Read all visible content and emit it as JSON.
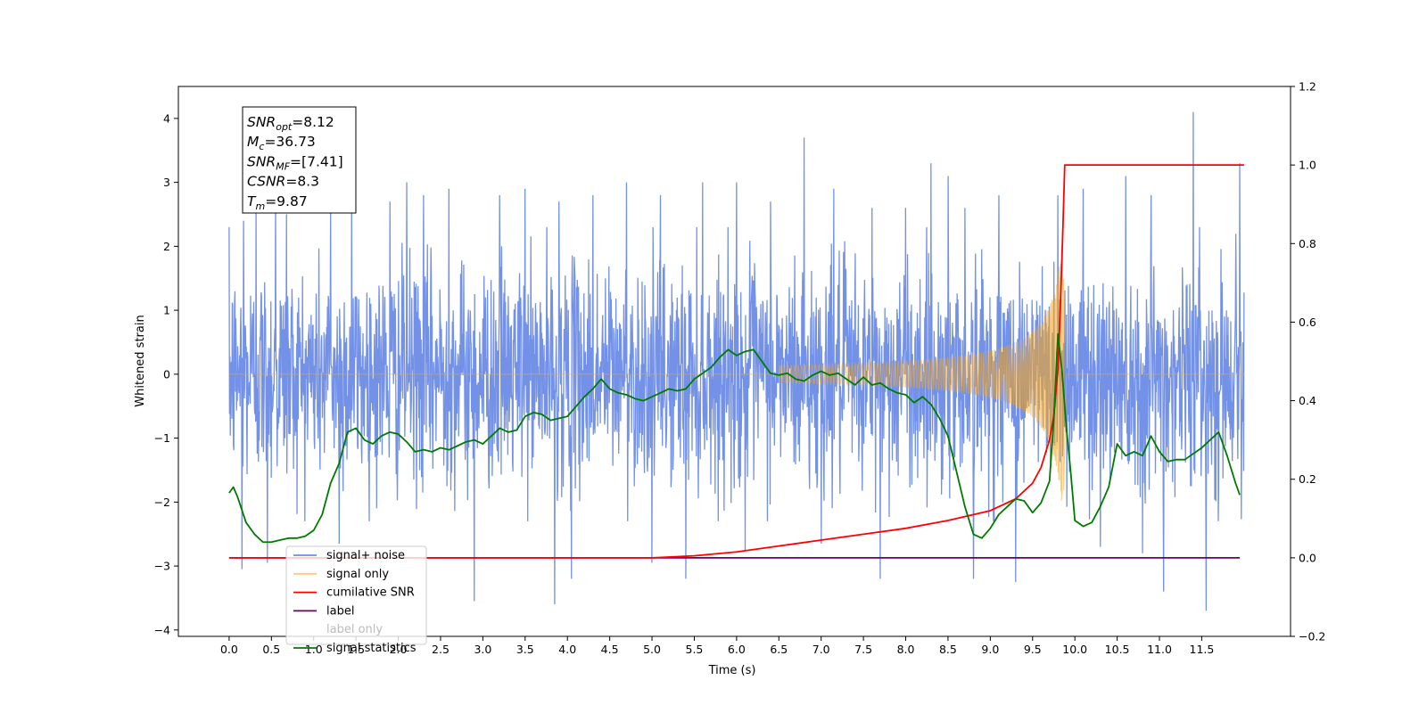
{
  "chart_data": {
    "type": "line",
    "xlabel": "Time (s)",
    "ylabel": "Whitened strain",
    "xlim": [
      -0.6,
      12.55
    ],
    "ylim": [
      -4.1,
      4.5
    ],
    "y2lim": [
      -0.2,
      1.2
    ],
    "x_ticks": [
      "0.0",
      "0.5",
      "1.0",
      "1.5",
      "2.0",
      "2.5",
      "3.0",
      "3.5",
      "4.0",
      "4.5",
      "5.0",
      "5.5",
      "6.0",
      "6.5",
      "7.0",
      "7.5",
      "8.0",
      "8.5",
      "9.0",
      "9.5",
      "10.0",
      "10.5",
      "11.0",
      "11.5"
    ],
    "y_ticks": [
      "−4",
      "−3",
      "−2",
      "−1",
      "0",
      "1",
      "2",
      "3",
      "4"
    ],
    "y2_ticks": [
      "−0.2",
      "0.0",
      "0.2",
      "0.4",
      "0.6",
      "0.8",
      "1.0",
      "1.2"
    ],
    "grid": false,
    "legend_position": "lower-left",
    "annotation": {
      "lines": [
        {
          "base": "SNR",
          "sub": "opt",
          "rest": "=8.12"
        },
        {
          "base": "M",
          "sub": "c",
          "rest": "=36.73"
        },
        {
          "base": "SNR",
          "sub": "MF",
          "rest": "=[7.41]"
        },
        {
          "base": "CSNR",
          "sub": "",
          "rest": "=8.3"
        },
        {
          "base": "T",
          "sub": "m",
          "rest": "=9.87"
        }
      ]
    },
    "series": [
      {
        "name": "signal+ noise",
        "color": "#6b8be6",
        "axis": "left",
        "description": "dense noise band approximately within [-1.8, 1.8] with spikes up to ~4.1 and down to ~-3.7",
        "t_range": [
          0.0,
          12.0
        ],
        "spikes": [
          [
            0.17,
            2.4
          ],
          [
            0.32,
            2.6
          ],
          [
            0.55,
            2.8
          ],
          [
            0.68,
            2.5
          ],
          [
            1.2,
            2.6
          ],
          [
            1.45,
            2.9
          ],
          [
            1.9,
            2.7
          ],
          [
            2.1,
            3.0
          ],
          [
            2.3,
            2.8
          ],
          [
            2.6,
            2.9
          ],
          [
            2.9,
            3.0
          ],
          [
            3.2,
            2.8
          ],
          [
            3.5,
            2.9
          ],
          [
            3.9,
            2.7
          ],
          [
            4.3,
            2.8
          ],
          [
            4.7,
            3.0
          ],
          [
            5.1,
            2.8
          ],
          [
            5.6,
            3.0
          ],
          [
            6.0,
            3.0
          ],
          [
            6.4,
            2.7
          ],
          [
            6.8,
            3.7
          ],
          [
            7.15,
            2.9
          ],
          [
            7.6,
            2.6
          ],
          [
            8.0,
            2.6
          ],
          [
            8.3,
            3.3
          ],
          [
            8.5,
            3.1
          ],
          [
            8.7,
            2.6
          ],
          [
            9.1,
            2.8
          ],
          [
            9.8,
            2.8
          ],
          [
            10.1,
            2.9
          ],
          [
            10.6,
            3.1
          ],
          [
            10.9,
            2.8
          ],
          [
            11.4,
            4.1
          ],
          [
            11.95,
            3.3
          ],
          [
            0.15,
            -3.05
          ],
          [
            0.45,
            -2.95
          ],
          [
            1.3,
            -2.65
          ],
          [
            2.9,
            -3.55
          ],
          [
            3.85,
            -3.6
          ],
          [
            4.05,
            -3.2
          ],
          [
            5.0,
            -2.95
          ],
          [
            5.4,
            -3.2
          ],
          [
            6.1,
            -2.75
          ],
          [
            7.0,
            -2.65
          ],
          [
            7.7,
            -3.2
          ],
          [
            8.8,
            -3.2
          ],
          [
            9.3,
            -3.25
          ],
          [
            10.3,
            -2.7
          ],
          [
            10.8,
            -2.8
          ],
          [
            11.05,
            -3.4
          ],
          [
            11.55,
            -3.7
          ]
        ]
      },
      {
        "name": "signal only",
        "color": "#f5a623",
        "axis": "left",
        "description": "flat near zero, chirp oscillation growing from ~7.0 s to peak near 9.87 s, then zero",
        "merger_time": 9.87
      },
      {
        "name": "cumilative SNR",
        "color": "#ff0000",
        "axis": "right",
        "x": [
          0.0,
          5.0,
          5.5,
          6.0,
          6.5,
          7.0,
          7.5,
          8.0,
          8.5,
          9.0,
          9.3,
          9.5,
          9.6,
          9.7,
          9.75,
          9.8,
          9.83,
          9.86,
          9.88,
          12.0
        ],
        "y": [
          0.0,
          0.0,
          0.005,
          0.015,
          0.03,
          0.045,
          0.06,
          0.075,
          0.095,
          0.12,
          0.15,
          0.19,
          0.23,
          0.3,
          0.36,
          0.48,
          0.65,
          0.85,
          1.0,
          1.0
        ]
      },
      {
        "name": "label",
        "color": "#6a006a",
        "axis": "right",
        "x": [
          0.0,
          11.95
        ],
        "y": [
          0.0,
          0.0
        ]
      },
      {
        "name": "label only",
        "color": "#6a006a",
        "axis": "right",
        "legend_hidden": true
      },
      {
        "name": "signal statistics",
        "color": "#007a00",
        "axis": "right",
        "x": [
          0.0,
          0.05,
          0.1,
          0.2,
          0.3,
          0.4,
          0.5,
          0.6,
          0.7,
          0.8,
          0.9,
          1.0,
          1.1,
          1.2,
          1.3,
          1.4,
          1.5,
          1.6,
          1.7,
          1.8,
          1.9,
          2.0,
          2.1,
          2.2,
          2.3,
          2.4,
          2.5,
          2.6,
          2.7,
          2.8,
          2.9,
          3.0,
          3.1,
          3.2,
          3.3,
          3.4,
          3.5,
          3.6,
          3.7,
          3.8,
          3.9,
          4.0,
          4.1,
          4.2,
          4.3,
          4.4,
          4.5,
          4.6,
          4.7,
          4.8,
          4.9,
          5.0,
          5.1,
          5.2,
          5.3,
          5.4,
          5.5,
          5.6,
          5.7,
          5.8,
          5.9,
          6.0,
          6.1,
          6.2,
          6.3,
          6.4,
          6.5,
          6.6,
          6.7,
          6.8,
          6.9,
          7.0,
          7.1,
          7.2,
          7.3,
          7.4,
          7.5,
          7.6,
          7.7,
          7.8,
          7.9,
          8.0,
          8.1,
          8.2,
          8.3,
          8.4,
          8.5,
          8.6,
          8.7,
          8.8,
          8.9,
          9.0,
          9.1,
          9.2,
          9.3,
          9.4,
          9.5,
          9.6,
          9.7,
          9.75,
          9.8,
          9.85,
          9.9,
          9.95,
          10.0,
          10.1,
          10.2,
          10.3,
          10.4,
          10.5,
          10.6,
          10.7,
          10.8,
          10.9,
          11.0,
          11.1,
          11.2,
          11.3,
          11.4,
          11.5,
          11.6,
          11.7,
          11.8,
          11.9,
          11.95
        ],
        "y": [
          0.165,
          0.18,
          0.155,
          0.09,
          0.06,
          0.04,
          0.04,
          0.045,
          0.05,
          0.05,
          0.055,
          0.07,
          0.11,
          0.19,
          0.24,
          0.32,
          0.33,
          0.3,
          0.29,
          0.31,
          0.32,
          0.315,
          0.295,
          0.27,
          0.275,
          0.27,
          0.28,
          0.275,
          0.285,
          0.295,
          0.3,
          0.29,
          0.31,
          0.33,
          0.32,
          0.325,
          0.36,
          0.37,
          0.365,
          0.35,
          0.355,
          0.36,
          0.385,
          0.41,
          0.43,
          0.455,
          0.43,
          0.42,
          0.415,
          0.405,
          0.4,
          0.41,
          0.42,
          0.43,
          0.425,
          0.43,
          0.455,
          0.47,
          0.485,
          0.51,
          0.53,
          0.515,
          0.525,
          0.53,
          0.5,
          0.47,
          0.465,
          0.47,
          0.455,
          0.45,
          0.465,
          0.475,
          0.465,
          0.47,
          0.455,
          0.44,
          0.46,
          0.44,
          0.445,
          0.43,
          0.42,
          0.415,
          0.395,
          0.41,
          0.39,
          0.355,
          0.31,
          0.22,
          0.13,
          0.06,
          0.05,
          0.075,
          0.11,
          0.13,
          0.15,
          0.145,
          0.115,
          0.14,
          0.195,
          0.35,
          0.57,
          0.47,
          0.33,
          0.22,
          0.095,
          0.08,
          0.09,
          0.13,
          0.18,
          0.29,
          0.26,
          0.27,
          0.26,
          0.31,
          0.27,
          0.245,
          0.25,
          0.25,
          0.265,
          0.28,
          0.3,
          0.32,
          0.26,
          0.19,
          0.16
        ]
      }
    ]
  }
}
